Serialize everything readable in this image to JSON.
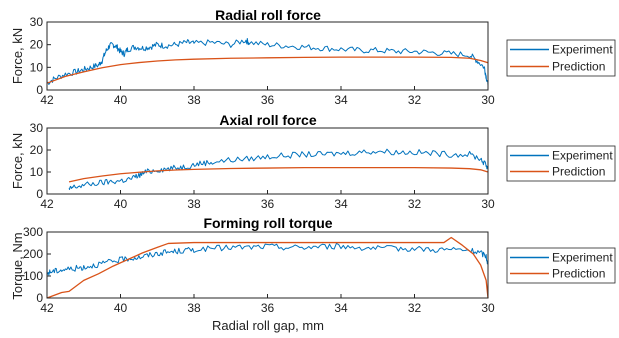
{
  "figure": {
    "xlabel": "Radial roll gap, mm"
  },
  "colors": {
    "experiment": "#0072BD",
    "prediction": "#D95319",
    "axis": "#262626"
  },
  "chart_data": [
    {
      "type": "line",
      "title": "Radial roll force",
      "ylabel": "Force, kN",
      "xlim": [
        42,
        30
      ],
      "ylim": [
        0,
        30
      ],
      "xticks": [
        42,
        40,
        38,
        36,
        34,
        32,
        30
      ],
      "yticks": [
        0,
        10,
        20,
        30
      ],
      "legend": "right",
      "series": [
        {
          "name": "Experiment",
          "x": [
            42,
            41.8,
            41.5,
            41.2,
            41,
            40.8,
            40.6,
            40.5,
            40.4,
            40.3,
            40.2,
            40.1,
            40,
            39.9,
            39.8,
            39.6,
            39.4,
            39.2,
            39,
            38.8,
            38.5,
            38.2,
            38,
            37.5,
            37,
            36.6,
            36.5,
            36,
            35.5,
            35,
            34.5,
            34,
            33.5,
            33,
            32.5,
            32,
            31.5,
            31,
            30.5,
            30.3,
            30.1,
            30.05,
            30
          ],
          "y": [
            3,
            5,
            7,
            8,
            9,
            10,
            11,
            13,
            17,
            19.5,
            20,
            19,
            17,
            16,
            18,
            19,
            18.5,
            19,
            20,
            19.5,
            20,
            21,
            20.5,
            21,
            20,
            22,
            21,
            20,
            19.5,
            19,
            18.5,
            18,
            17.5,
            17.5,
            17,
            17,
            16.5,
            16,
            15.5,
            13,
            10,
            6,
            2
          ]
        },
        {
          "name": "Prediction",
          "x": [
            42,
            41.5,
            41,
            40.5,
            40,
            39.5,
            39,
            38.5,
            38,
            37,
            36,
            35,
            34,
            33,
            32,
            31,
            30.5,
            30.2,
            30
          ],
          "y": [
            3,
            6,
            8,
            9.8,
            11.2,
            12.1,
            12.8,
            13.3,
            13.6,
            14,
            14.2,
            14.4,
            14.5,
            14.5,
            14.5,
            14.4,
            14,
            13,
            12
          ]
        }
      ]
    },
    {
      "type": "line",
      "title": "Axial roll force",
      "ylabel": "Force, kN",
      "xlim": [
        42,
        30
      ],
      "ylim": [
        0,
        30
      ],
      "xticks": [
        42,
        40,
        38,
        36,
        34,
        32,
        30
      ],
      "yticks": [
        0,
        10,
        20,
        30
      ],
      "legend": "right",
      "series": [
        {
          "name": "Experiment",
          "x": [
            41.4,
            41.3,
            41,
            40.6,
            40.3,
            40,
            39.7,
            39.5,
            39.3,
            39,
            38.7,
            38.4,
            38.1,
            37.8,
            37.5,
            37,
            36.5,
            36,
            35.5,
            35,
            34.5,
            34,
            33.5,
            33,
            32.5,
            32,
            31.5,
            31,
            30.5,
            30.2,
            30.05,
            30
          ],
          "y": [
            2,
            3,
            4,
            5,
            5.5,
            6,
            7,
            8.5,
            10,
            11,
            11.5,
            12,
            13,
            14,
            14.5,
            15.5,
            16,
            17,
            17.5,
            18,
            18,
            18.5,
            19,
            19.5,
            19,
            19,
            18.5,
            18,
            18,
            16,
            13,
            12
          ]
        },
        {
          "name": "Prediction",
          "x": [
            41.4,
            41,
            40.5,
            40,
            39.5,
            39,
            38.5,
            38,
            37,
            36,
            35,
            34,
            33,
            32,
            31,
            30.5,
            30.2,
            30
          ],
          "y": [
            5.5,
            7,
            8.2,
            9.2,
            9.9,
            10.5,
            10.9,
            11.2,
            11.6,
            11.8,
            12,
            12,
            12,
            12,
            11.8,
            11.5,
            11,
            10
          ]
        }
      ]
    },
    {
      "type": "line",
      "title": "Forming roll torque",
      "ylabel": "Torque, Nm",
      "xlim": [
        42,
        30
      ],
      "ylim": [
        0,
        300
      ],
      "xticks": [
        42,
        40,
        38,
        36,
        34,
        32,
        30
      ],
      "yticks": [
        0,
        100,
        200,
        300
      ],
      "legend": "right",
      "series": [
        {
          "name": "Experiment",
          "x": [
            42,
            41.9,
            41.7,
            41.5,
            41.2,
            41,
            40.7,
            40.4,
            40.1,
            39.8,
            39.5,
            39.2,
            38.9,
            38.6,
            38.3,
            38,
            37.5,
            37,
            36.5,
            36,
            35.5,
            35,
            34.5,
            34,
            33.5,
            33,
            32.5,
            32,
            31.5,
            31,
            30.5,
            30.2,
            30.05,
            30
          ],
          "y": [
            110,
            120,
            125,
            130,
            135,
            140,
            150,
            160,
            170,
            180,
            185,
            195,
            205,
            210,
            215,
            220,
            225,
            230,
            230,
            235,
            230,
            230,
            235,
            235,
            230,
            225,
            225,
            225,
            220,
            220,
            215,
            205,
            190,
            150
          ]
        },
        {
          "name": "Prediction",
          "x": [
            42,
            41.6,
            41.4,
            41.2,
            41,
            40.6,
            40.2,
            39.8,
            39.4,
            39,
            38.7,
            38,
            37,
            36,
            35,
            34,
            33,
            32,
            31.2,
            31,
            30.7,
            30.4,
            30.2,
            30.05,
            30
          ],
          "y": [
            0,
            25,
            30,
            55,
            80,
            110,
            145,
            175,
            205,
            230,
            248,
            252,
            252,
            252,
            252,
            252,
            252,
            252,
            252,
            275,
            240,
            200,
            150,
            80,
            0
          ]
        }
      ]
    }
  ]
}
